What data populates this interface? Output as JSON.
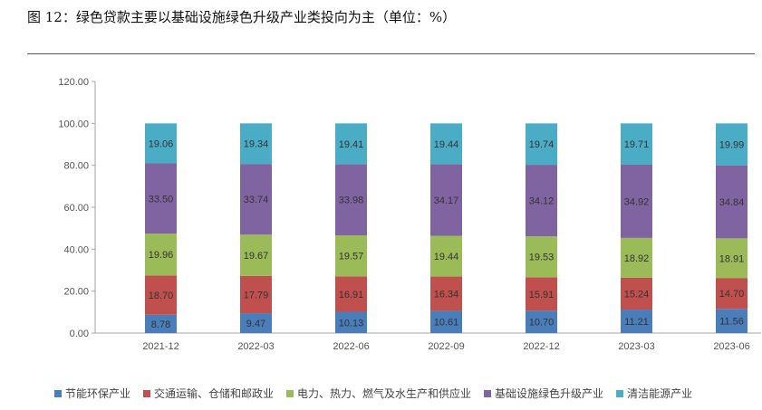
{
  "figure_title": "图 12：绿色贷款主要以基础设施绿色升级产业类投向为主（单位：%）",
  "chart_data": {
    "type": "bar",
    "stacked": true,
    "title": "",
    "xlabel": "",
    "ylabel": "",
    "ylim": [
      0,
      120
    ],
    "yticks": [
      "0.00",
      "20.00",
      "40.00",
      "60.00",
      "80.00",
      "100.00",
      "120.00"
    ],
    "grid": false,
    "legend_position": "bottom",
    "categories": [
      "2021-12",
      "2022-03",
      "2022-06",
      "2022-09",
      "2022-12",
      "2023-03",
      "2023-06"
    ],
    "series": [
      {
        "name": "节能环保产业",
        "color": "#4a7ebb",
        "values": [
          8.78,
          9.47,
          10.13,
          10.61,
          10.7,
          11.21,
          11.56
        ],
        "labels": [
          "8.78",
          "9.47",
          "10.13",
          "10.61",
          "10.70",
          "11.21",
          "11.56"
        ]
      },
      {
        "name": "交通运输、仓储和邮政业",
        "color": "#c0504d",
        "values": [
          18.7,
          17.79,
          16.91,
          16.34,
          15.91,
          15.24,
          14.7
        ],
        "labels": [
          "18.70",
          "17.79",
          "16.91",
          "16.34",
          "15.91",
          "15.24",
          "14.70"
        ]
      },
      {
        "name": "电力、热力、燃气及水生产和供应业",
        "color": "#9bbb59",
        "values": [
          19.96,
          19.67,
          19.57,
          19.44,
          19.53,
          18.92,
          18.91
        ],
        "labels": [
          "19.96",
          "19.67",
          "19.57",
          "19.44",
          "19.53",
          "18.92",
          "18.91"
        ]
      },
      {
        "name": "基础设施绿色升级产业",
        "color": "#8064a2",
        "values": [
          33.5,
          33.74,
          33.98,
          34.17,
          34.12,
          34.92,
          34.84
        ],
        "labels": [
          "33.50",
          "33.74",
          "33.98",
          "34.17",
          "34.12",
          "34.92",
          "34.84"
        ]
      },
      {
        "name": "清洁能源产业",
        "color": "#4bacc6",
        "values": [
          19.06,
          19.34,
          19.41,
          19.44,
          19.74,
          19.71,
          19.99
        ],
        "labels": [
          "19.06",
          "19.34",
          "19.41",
          "19.44",
          "19.74",
          "19.71",
          "19.99"
        ]
      }
    ]
  }
}
